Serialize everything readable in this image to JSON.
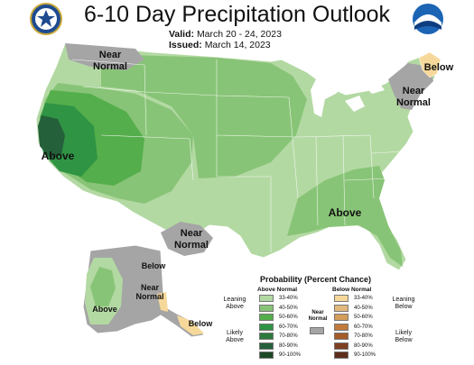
{
  "header": {
    "title": "6-10 Day Precipitation Outlook",
    "valid_label": "Valid:",
    "valid_value": "March 20 - 24, 2023",
    "issued_label": "Issued:",
    "issued_value": "March 14, 2023",
    "left_logo_icon": "commerce-seal-icon",
    "right_logo_icon": "noaa-logo-icon"
  },
  "map": {
    "labels": {
      "nw_near_normal": [
        "Near",
        "Normal"
      ],
      "ca_above": "Above",
      "ne_below": "Below",
      "ne_near_normal": [
        "Near",
        "Normal"
      ],
      "se_above": "Above",
      "tx_near_normal": [
        "Near",
        "Normal"
      ],
      "ak_below": "Below",
      "ak_near_normal": [
        "Near",
        "Normal"
      ],
      "ak_above": "Above",
      "ak_se_below": "Below"
    }
  },
  "legend": {
    "title": "Probability (Percent Chance)",
    "above_header": "Above Normal",
    "below_header": "Below Normal",
    "near_normal": [
      "Near",
      "Normal"
    ],
    "leaning_above": [
      "Leaning",
      "Above"
    ],
    "likely_above": [
      "Likely",
      "Above"
    ],
    "leaning_below": [
      "Leaning",
      "Below"
    ],
    "likely_below": [
      "Likely",
      "Below"
    ],
    "above_bins": [
      "33-40%",
      "40-50%",
      "50-60%",
      "60-70%",
      "70-80%",
      "80-90%",
      "90-100%"
    ],
    "below_bins": [
      "33-40%",
      "40-50%",
      "50-60%",
      "60-70%",
      "70-80%",
      "80-90%",
      "90-100%"
    ],
    "above_colors": [
      "#b3d9a3",
      "#88c477",
      "#55ae4c",
      "#2f9444",
      "#2b7a3c",
      "#24603a",
      "#1d4725"
    ],
    "below_colors": [
      "#f6d99a",
      "#e2b87c",
      "#d39e5c",
      "#c07b3c",
      "#a45c28",
      "#7e4022",
      "#5d2c1a"
    ],
    "near_normal_color": "#a5a5a5"
  }
}
